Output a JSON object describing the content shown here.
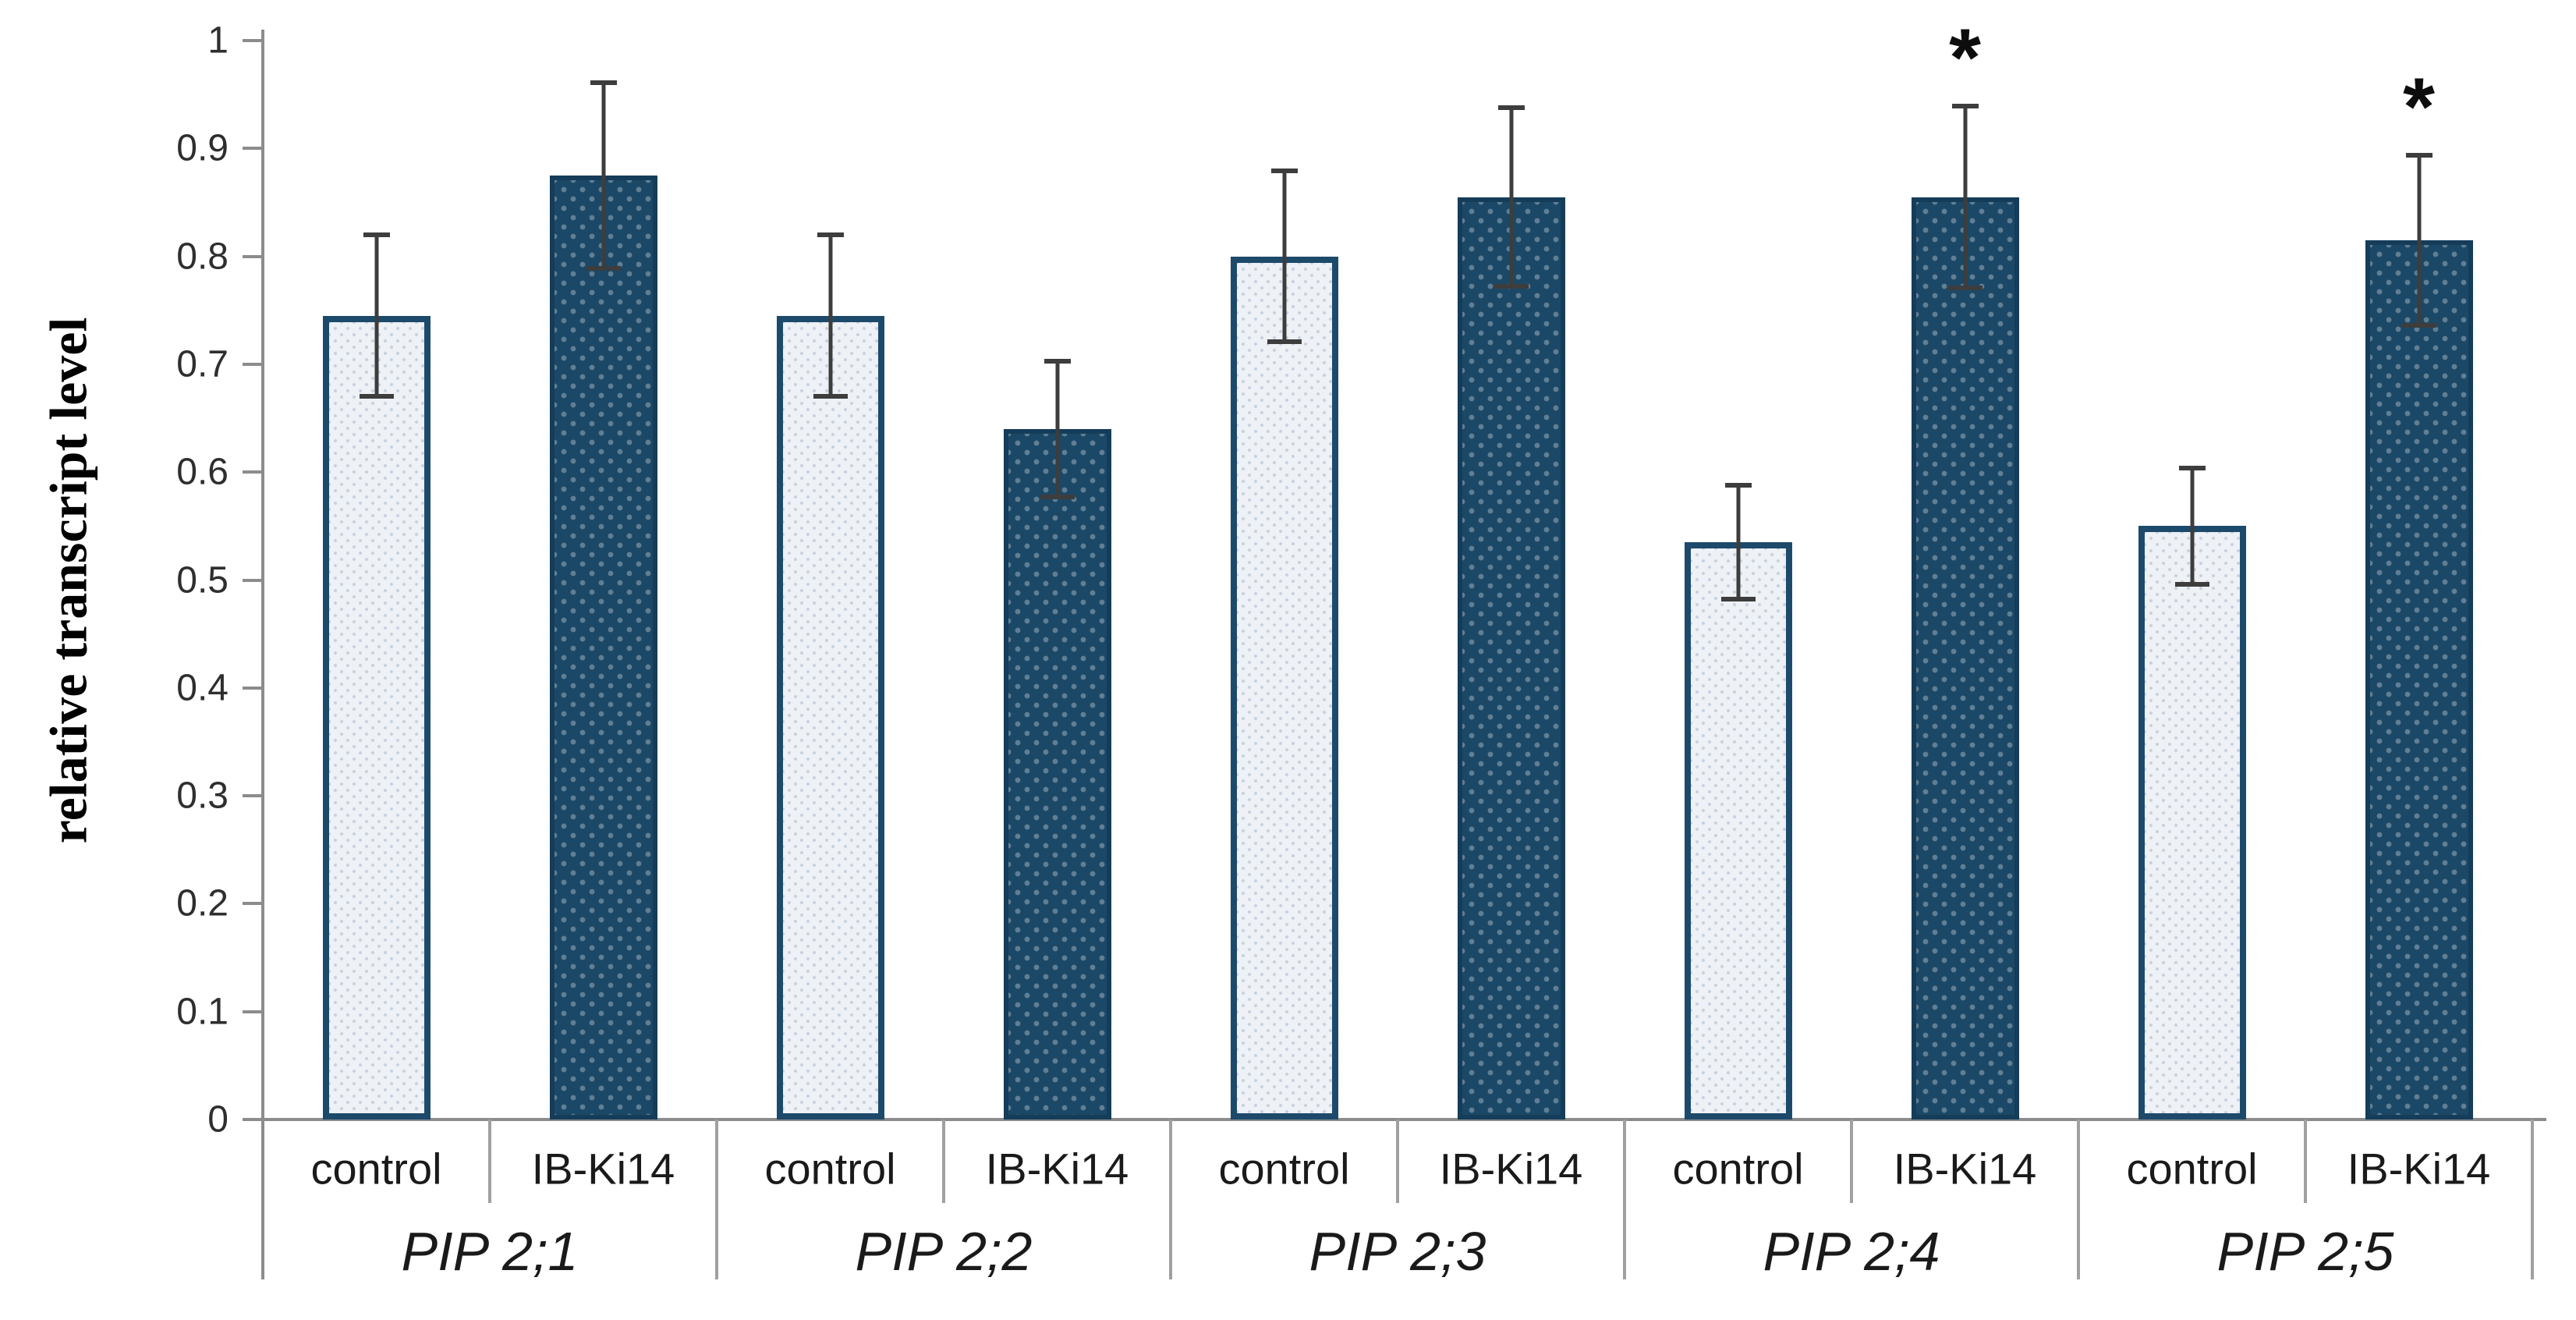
{
  "figure": {
    "y_axis_title": "relative transcript level",
    "significance_marker": "*"
  },
  "chart_data": {
    "type": "bar",
    "title": "",
    "xlabel": "",
    "ylabel": "relative transcript level",
    "ylim": [
      0,
      1
    ],
    "ytick_step": 0.1,
    "ytick_labels": [
      "0",
      "0.1",
      "0.2",
      "0.3",
      "0.4",
      "0.5",
      "0.6",
      "0.7",
      "0.8",
      "0.9",
      "1"
    ],
    "grid": "off",
    "legend": "none",
    "categories": [
      "PIP 2;1",
      "PIP 2;2",
      "PIP 2;3",
      "PIP 2;4",
      "PIP 2;5"
    ],
    "bar_labels": [
      "control",
      "IB-Ki14"
    ],
    "series": [
      {
        "name": "control",
        "values": [
          0.745,
          0.745,
          0.8,
          0.535,
          0.55
        ],
        "errors": [
          0.075,
          0.075,
          0.079,
          0.053,
          0.054
        ],
        "significant": [
          false,
          false,
          false,
          false,
          false
        ]
      },
      {
        "name": "IB-Ki14",
        "values": [
          0.875,
          0.64,
          0.855,
          0.855,
          0.815
        ],
        "errors": [
          0.086,
          0.063,
          0.083,
          0.084,
          0.079
        ],
        "significant": [
          false,
          false,
          false,
          true,
          true
        ]
      }
    ],
    "colors": {
      "control_fill": "#eef1f5",
      "control_border": "#1d4a6b",
      "treatment_fill": "#1b4866",
      "treatment_border": "#153c59",
      "error_bar": "#3d3d3d",
      "axis": "#8c8c8c",
      "separator": "#a0a0a0",
      "text": "#1a1a1a"
    }
  }
}
